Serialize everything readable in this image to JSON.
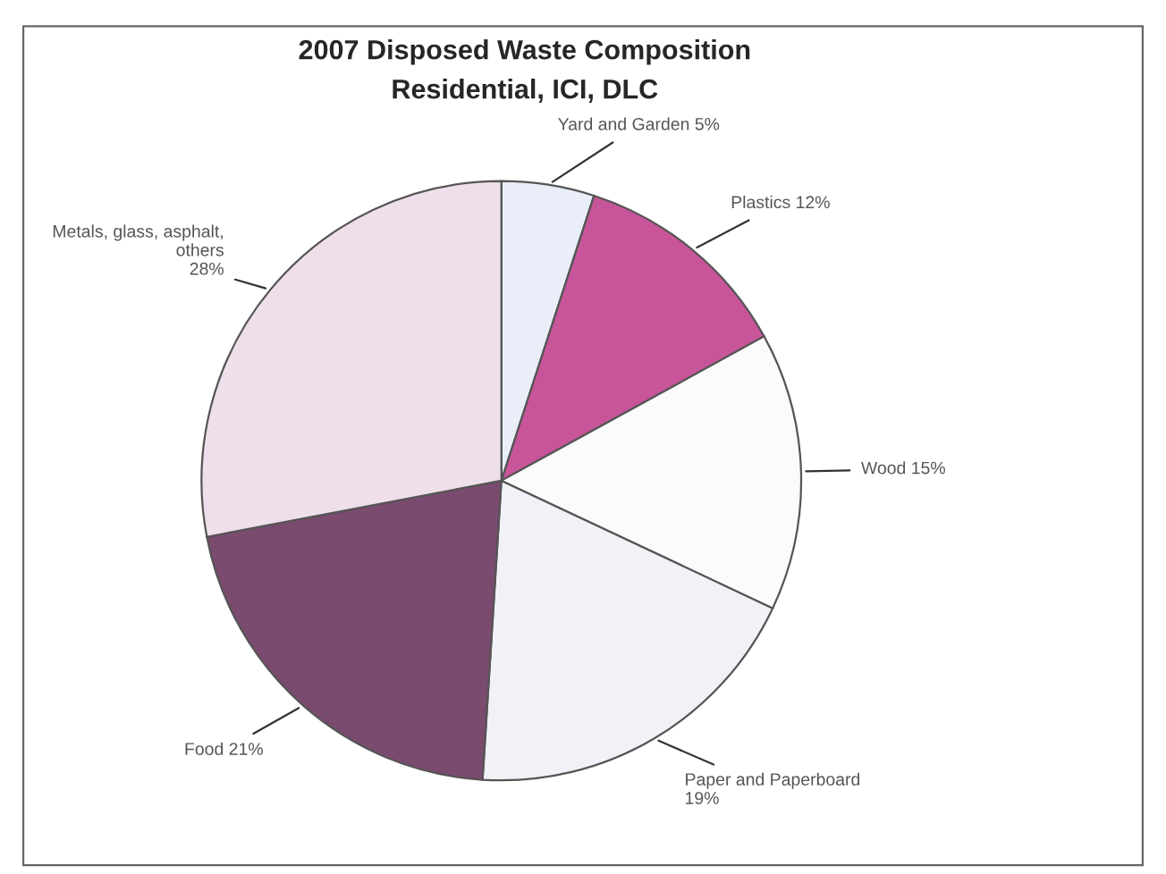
{
  "chart_data": {
    "type": "pie",
    "title": "2007 Disposed Waste Composition",
    "subtitle": "Residential, ICI, DLC",
    "categories": [
      "Yard and Garden",
      "Plastics",
      "Wood",
      "Paper and Paperboard",
      "Food",
      "Metals, glass, asphalt, others"
    ],
    "values": [
      5,
      12,
      15,
      19,
      21,
      28
    ],
    "value_labels": [
      "5%",
      "12%",
      "15%",
      "19%",
      "21%",
      "28%"
    ],
    "colors": [
      "#e9eef8",
      "#c8559a",
      "#fbfbfb",
      "#f3f1f8",
      "#7b4a6f",
      "#efdfea"
    ],
    "legend": false
  }
}
